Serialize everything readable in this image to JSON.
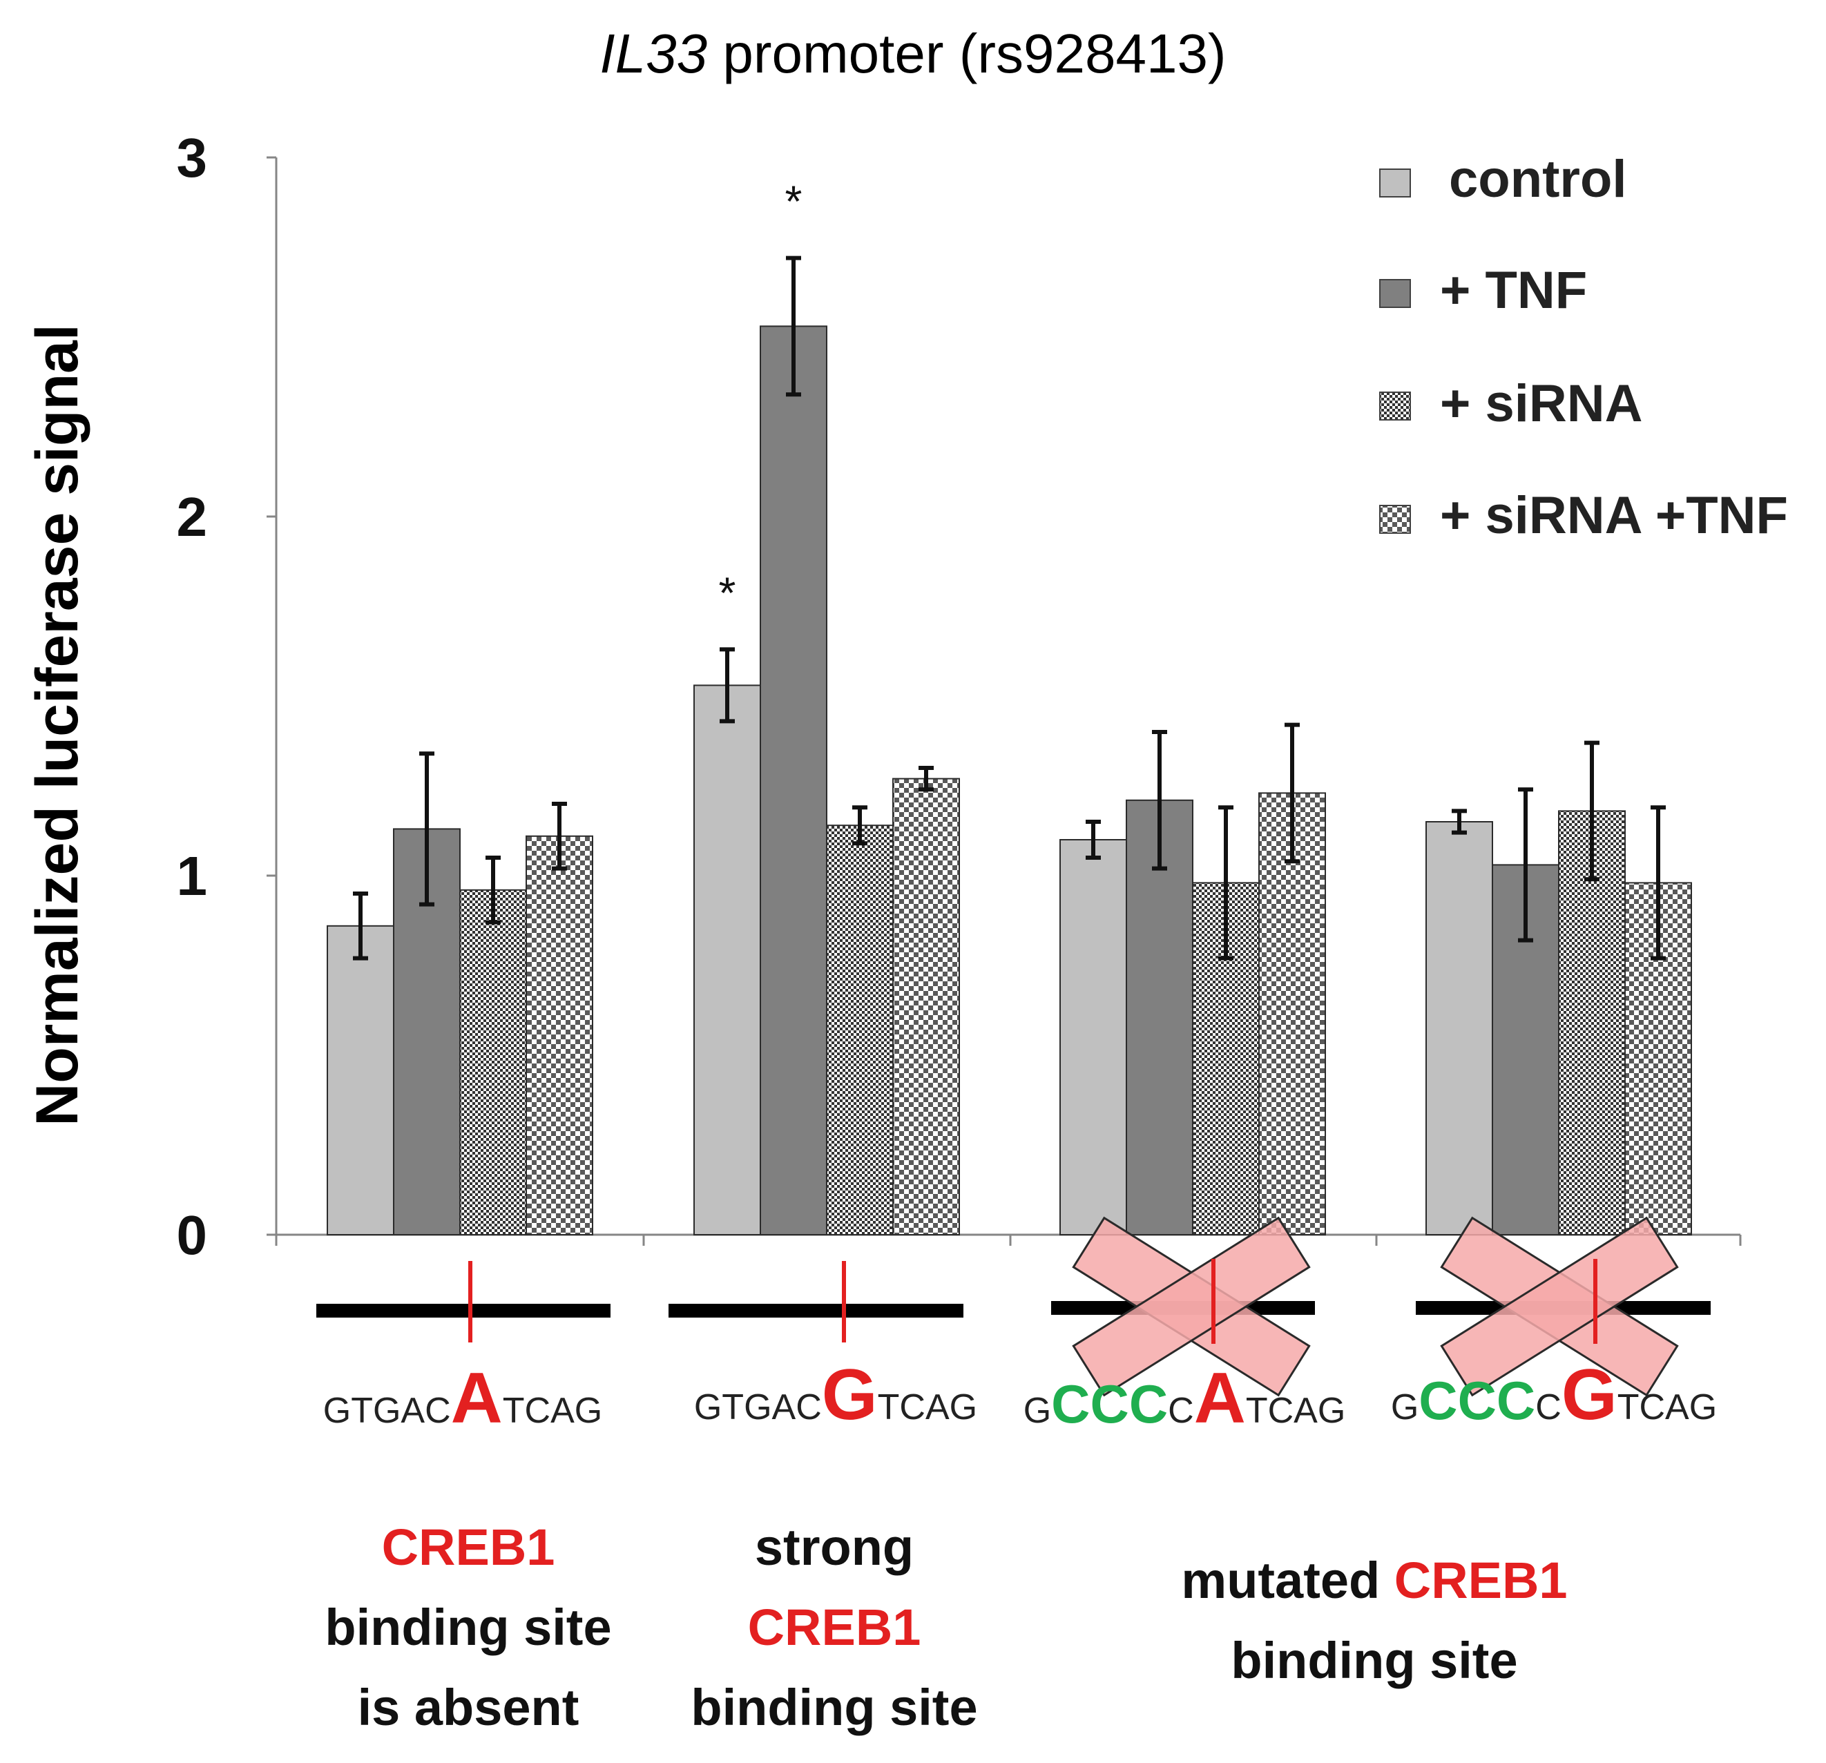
{
  "chart_data": {
    "type": "bar",
    "title_italic": "IL33",
    "title_rest": " promoter (rs928413)",
    "ylabel": "Normalized luciferase signal",
    "ylim": [
      0,
      3
    ],
    "yticks": [
      "0",
      "1",
      "2",
      "3"
    ],
    "groups": [
      "A",
      "G",
      "mutA",
      "mutG"
    ],
    "series": [
      {
        "name": "control",
        "pattern": "solid-light",
        "values": [
          0.86,
          1.53,
          1.1,
          1.15
        ],
        "errors": [
          0.09,
          0.1,
          0.05,
          0.03
        ]
      },
      {
        "name": "+ TNF",
        "pattern": "solid-dark",
        "values": [
          1.13,
          2.53,
          1.21,
          1.03
        ],
        "errors": [
          0.21,
          0.19,
          0.19,
          0.21
        ]
      },
      {
        "name": "+ siRNA",
        "pattern": "fine-check",
        "values": [
          0.96,
          1.14,
          0.98,
          1.18
        ],
        "errors": [
          0.09,
          0.05,
          0.21,
          0.19
        ]
      },
      {
        "name": "+ siRNA +TNF",
        "pattern": "coarse-check",
        "values": [
          1.11,
          1.27,
          1.23,
          0.98
        ],
        "errors": [
          0.09,
          0.03,
          0.19,
          0.21
        ]
      }
    ],
    "significance": [
      {
        "group": 1,
        "series": 0,
        "label": "*"
      },
      {
        "group": 1,
        "series": 1,
        "label": "*"
      }
    ]
  },
  "sequences": [
    {
      "pre": "GTGAC",
      "pre_green": "",
      "pre2": "",
      "allele": "A",
      "post": "TCAG"
    },
    {
      "pre": "GTGAC",
      "pre_green": "",
      "pre2": "",
      "allele": "G",
      "post": "TCAG"
    },
    {
      "pre": "G",
      "pre_green": "CCC",
      "pre2": "C",
      "allele": "A",
      "post": "TCAG"
    },
    {
      "pre": "G",
      "pre_green": "CCC",
      "pre2": "C",
      "allele": "G",
      "post": "TCAG"
    }
  ],
  "captions": {
    "absent": {
      "red": "CREB1",
      "line2": "binding site",
      "line3": "is absent"
    },
    "strong": {
      "line1": "strong",
      "red": "CREB1",
      "line3": "binding site"
    },
    "mutated": {
      "line1": "mutated ",
      "red": "CREB1",
      "line2": "binding site"
    }
  },
  "colors": {
    "control": "#c0c0c0",
    "tnf": "#808080",
    "red": "#e32020",
    "green": "#1fae4f",
    "cross": "#f6a9a9"
  }
}
